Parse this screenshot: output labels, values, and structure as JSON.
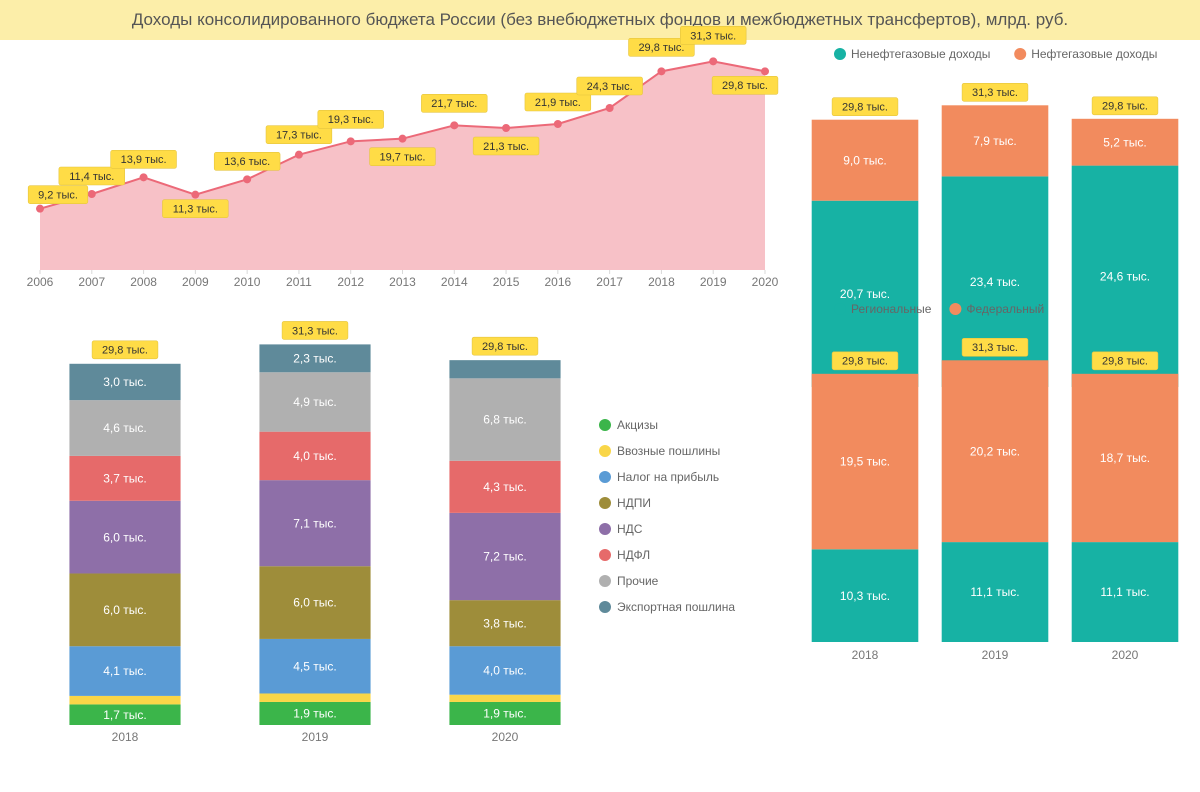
{
  "title": "Доходы консолидированного бюджета России (без внебюджетных фондов и межбюджетных трансфертов), млрд. руб.",
  "unit_suffix": " тыс.",
  "colors": {
    "title_bg": "#fceea9",
    "badge_fill": "#ffdc46",
    "badge_stroke": "#e5c540",
    "area_fill": "#f7c1c7",
    "line_stroke": "#ec6978",
    "axis_tick": "#d9d9d9",
    "axis_text": "#777777"
  },
  "area_chart": {
    "type": "area",
    "years": [
      2006,
      2007,
      2008,
      2009,
      2010,
      2011,
      2012,
      2013,
      2014,
      2015,
      2016,
      2017,
      2018,
      2019,
      2020
    ],
    "values": [
      9.2,
      11.4,
      13.9,
      11.3,
      13.6,
      17.3,
      19.3,
      19.7,
      21.7,
      21.3,
      21.9,
      24.3,
      29.8,
      31.3,
      29.8
    ],
    "ymax": 33,
    "marker_radius": 4
  },
  "stacked8": {
    "type": "stacked-bar",
    "years": [
      2018,
      2019,
      2020
    ],
    "totals": [
      "29,8",
      "31,3",
      "29,8"
    ],
    "segments_order": [
      "Экспортная пошлина",
      "Прочие",
      "НДФЛ",
      "НДС",
      "НДПИ",
      "Налог на прибыль",
      "Ввозные пошлины",
      "Акцизы"
    ],
    "legend_order": [
      "Акцизы",
      "Ввозные пошлины",
      "Налог на прибыль",
      "НДПИ",
      "НДС",
      "НДФЛ",
      "Прочие",
      "Экспортная пошлина"
    ],
    "bars": {
      "2018": {
        "Экспортная пошлина": 3.0,
        "Прочие": 4.6,
        "НДФЛ": 3.7,
        "НДС": 6.0,
        "НДПИ": 6.0,
        "Налог на прибыль": 4.1,
        "Ввозные пошлины": 0.7,
        "Акцизы": 1.7
      },
      "2019": {
        "Экспортная пошлина": 2.3,
        "Прочие": 4.9,
        "НДФЛ": 4.0,
        "НДС": 7.1,
        "НДПИ": 6.0,
        "Налог на прибыль": 4.5,
        "Ввозные пошлины": 0.7,
        "Акцизы": 1.9
      },
      "2020": {
        "Экспортная пошлина": 1.5,
        "Прочие": 6.8,
        "НДФЛ": 4.3,
        "НДС": 7.2,
        "НДПИ": 3.8,
        "Налог на прибыль": 4.0,
        "Ввозные пошлины": 0.6,
        "Акцизы": 1.9
      }
    },
    "labels_shown": {
      "2018": [
        "Экспортная пошлина",
        "Прочие",
        "НДФЛ",
        "НДС",
        "НДПИ",
        "Налог на прибыль",
        "Акцизы"
      ],
      "2019": [
        "Экспортная пошлина",
        "Прочие",
        "НДФЛ",
        "НДС",
        "НДПИ",
        "Налог на прибыль",
        "Акцизы"
      ],
      "2020": [
        "Прочие",
        "НДФЛ",
        "НДС",
        "НДПИ",
        "Налог на прибыль",
        "Акцизы"
      ]
    },
    "colors": {
      "Акцизы": "#3bb54a",
      "Ввозные пошлины": "#f9d648",
      "Налог на прибыль": "#5a9bd5",
      "НДПИ": "#9e8d3a",
      "НДС": "#8e6fa8",
      "НДФЛ": "#e66a6a",
      "Прочие": "#b0b0b0",
      "Экспортная пошлина": "#5f8a9a"
    },
    "bar_width": 0.75,
    "ymax": 33
  },
  "stacked2a": {
    "type": "stacked-bar",
    "legend": [
      {
        "label": "Ненефтегазовые доходы",
        "color": "#17b2a4"
      },
      {
        "label": "Нефтегазовые доходы",
        "color": "#f28b5e"
      }
    ],
    "years": [
      2018,
      2019,
      2020
    ],
    "totals": [
      "29,8",
      "31,3",
      "29,8"
    ],
    "bars": {
      "2018": {
        "Ненефтегазовые доходы": 20.7,
        "Нефтегазовые доходы": 9.0
      },
      "2019": {
        "Ненефтегазовые доходы": 23.4,
        "Нефтегазовые доходы": 7.9
      },
      "2020": {
        "Ненефтегазовые доходы": 24.6,
        "Нефтегазовые доходы": 5.2
      }
    },
    "bottom_key": "Ненефтегазовые доходы",
    "top_key": "Нефтегазовые доходы",
    "bar_width": 0.82,
    "ymax": 33
  },
  "stacked2b": {
    "type": "stacked-bar",
    "legend": [
      {
        "label": "Региональные",
        "color": "#17b2a4"
      },
      {
        "label": "Федеральный",
        "color": "#f28b5e"
      }
    ],
    "years": [
      2018,
      2019,
      2020
    ],
    "totals": [
      "29,8",
      "31,3",
      "29,8"
    ],
    "bars": {
      "2018": {
        "Региональные": 10.3,
        "Федеральный": 19.5
      },
      "2019": {
        "Региональные": 11.1,
        "Федеральный": 20.2
      },
      "2020": {
        "Региональные": 11.1,
        "Федеральный": 18.7
      }
    },
    "bottom_key": "Региональные",
    "top_key": "Федеральный",
    "bar_width": 0.82,
    "ymax": 33
  }
}
